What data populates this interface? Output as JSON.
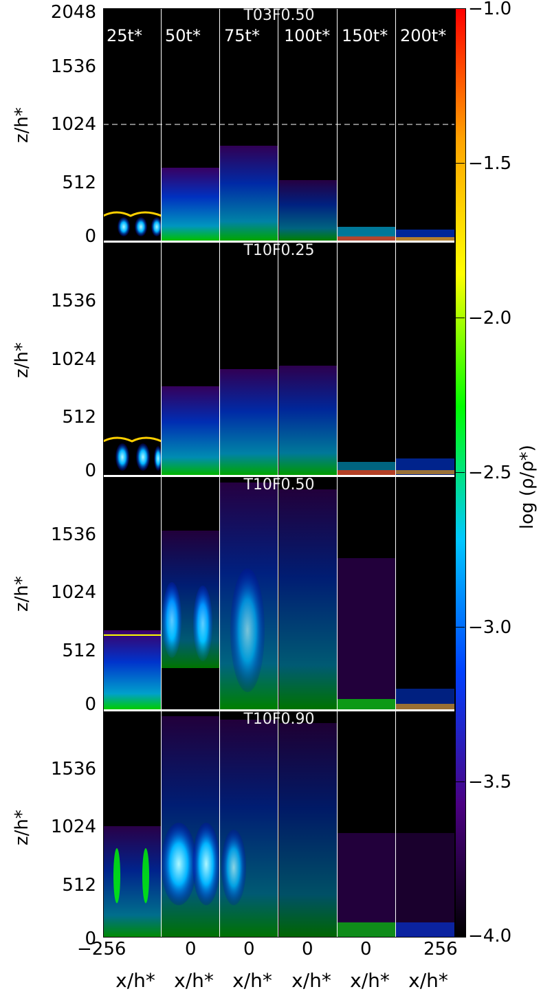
{
  "panels": [
    {
      "title": "T03F0.50"
    },
    {
      "title": "T10F0.25"
    },
    {
      "title": "T10F0.50"
    },
    {
      "title": "T10F0.90"
    }
  ],
  "time_labels": [
    "25t*",
    "50t*",
    "75t*",
    "100t*",
    "150t*",
    "200t*"
  ],
  "yticks_top": [
    "2048",
    "1536",
    "1024",
    "512",
    "0"
  ],
  "yticks_other": [
    "1536",
    "1024",
    "512",
    "0"
  ],
  "ylabel": "z/h*",
  "xticks": [
    "−256",
    "0",
    "0",
    "0",
    "0",
    "256"
  ],
  "xlabel": "x/h*",
  "colorbar": {
    "label": "log (ρ/ρ*)",
    "ticks": [
      "−1.0",
      "−1.5",
      "−2.0",
      "−2.5",
      "−3.0",
      "−3.5",
      "−4.0"
    ],
    "colors": [
      "#ff0000",
      "#ffa500",
      "#ffff00",
      "#00ff00",
      "#00c8ff",
      "#0040ff",
      "#4b0082",
      "#000000"
    ]
  }
}
